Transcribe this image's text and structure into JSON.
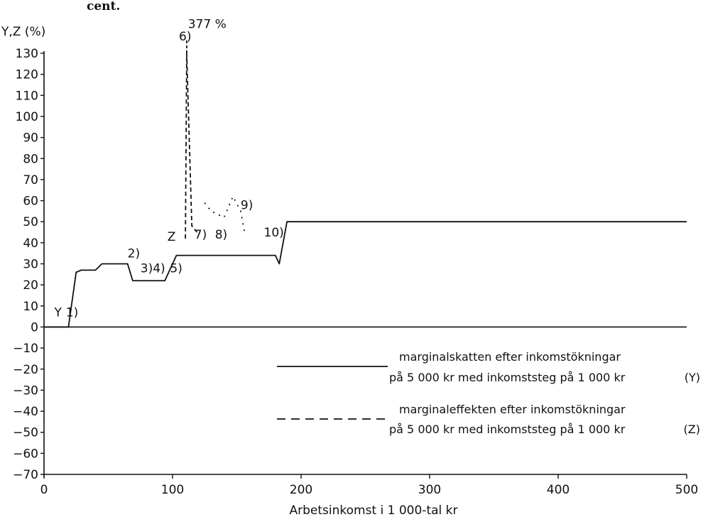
{
  "header_fragment": "cent.",
  "chart_data": {
    "type": "line",
    "title": "",
    "ylabel": "Y,Z (%)",
    "xlabel": "Arbetsinkomst i 1 000-tal kr",
    "xlim": [
      0,
      500
    ],
    "ylim": [
      -70,
      130
    ],
    "x_ticks": [
      0,
      100,
      200,
      300,
      400,
      500
    ],
    "y_ticks": [
      130,
      120,
      110,
      100,
      90,
      80,
      70,
      60,
      50,
      40,
      30,
      20,
      10,
      0,
      -10,
      -20,
      -30,
      -40,
      -50,
      -60,
      -70
    ],
    "y_tick_labels": [
      "130",
      "120",
      "110",
      "100",
      "90",
      "80",
      "70",
      "60",
      "50",
      "40",
      "30",
      "20",
      "10",
      "0",
      "−10",
      "−20",
      "−30",
      "−40",
      "−50",
      "−60",
      "−70"
    ],
    "grid": false,
    "series": [
      {
        "id": "Y",
        "style": "solid",
        "points": [
          [
            0,
            0
          ],
          [
            19,
            0
          ],
          [
            25,
            26
          ],
          [
            29,
            27
          ],
          [
            40,
            27
          ],
          [
            45,
            30
          ],
          [
            65,
            30
          ],
          [
            69,
            22
          ],
          [
            94,
            22
          ],
          [
            103,
            34
          ],
          [
            180,
            34
          ],
          [
            183,
            30
          ],
          [
            189,
            50
          ],
          [
            500,
            50
          ]
        ]
      },
      {
        "id": "Z",
        "style": "dashed",
        "points": [
          [
            110,
            42
          ],
          [
            111,
            130
          ],
          [
            115,
            48
          ],
          [
            119,
            45
          ]
        ]
      },
      {
        "id": "Z-scattered",
        "style": "dotted",
        "points": [
          [
            125,
            59
          ],
          [
            130,
            55
          ],
          [
            140,
            52
          ],
          [
            147,
            62
          ],
          [
            153,
            55
          ],
          [
            156,
            45
          ]
        ]
      }
    ],
    "annotations": [
      {
        "text": "377 %",
        "x": 112,
        "y": 142
      },
      {
        "text": "6)",
        "x": 105,
        "y": 136
      },
      {
        "text": "Y",
        "x": 8,
        "y": 5
      },
      {
        "text": "1)",
        "x": 17,
        "y": 5
      },
      {
        "text": "2)",
        "x": 65,
        "y": 33
      },
      {
        "text": "3)4)",
        "x": 75,
        "y": 26
      },
      {
        "text": "5)",
        "x": 98,
        "y": 26
      },
      {
        "text": "Z",
        "x": 96,
        "y": 41
      },
      {
        "text": "7)",
        "x": 117,
        "y": 42
      },
      {
        "text": "8)",
        "x": 133,
        "y": 42
      },
      {
        "text": "9)",
        "x": 153,
        "y": 56
      },
      {
        "text": "10)",
        "x": 171,
        "y": 43
      }
    ],
    "legend": {
      "placement": "bottom-right",
      "entries": [
        {
          "style": "solid",
          "line1": "marginalskatten efter inkomstökningar",
          "line2": "på 5 000 kr med inkomststeg på 1 000 kr",
          "tag": "(Y)"
        },
        {
          "style": "dashed",
          "line1": "marginaleffekten efter inkomstökningar",
          "line2": "på 5 000 kr med inkomststeg på 1 000 kr",
          "tag": "(Z)"
        }
      ]
    }
  }
}
